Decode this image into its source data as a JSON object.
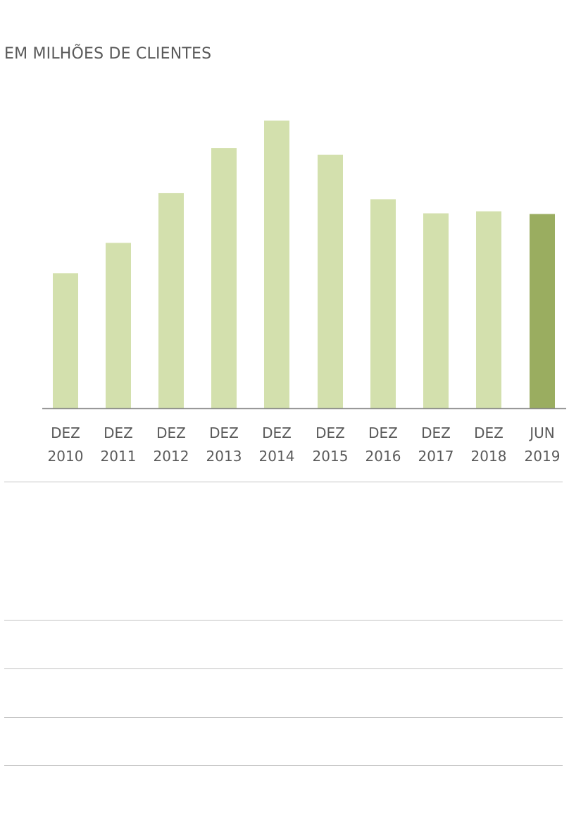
{
  "chart_data": {
    "type": "bar",
    "subtitle": "EM MILHÕES DE CLIENTES",
    "categories": [
      [
        "DEZ",
        "2010"
      ],
      [
        "DEZ",
        "2011"
      ],
      [
        "DEZ",
        "2012"
      ],
      [
        "DEZ",
        "2013"
      ],
      [
        "DEZ",
        "2014"
      ],
      [
        "DEZ",
        "2015"
      ],
      [
        "DEZ",
        "2016"
      ],
      [
        "DEZ",
        "2017"
      ],
      [
        "DEZ",
        "2018"
      ],
      [
        "JUN",
        "2019"
      ]
    ],
    "values": [
      201,
      246,
      320,
      387,
      428,
      377,
      311,
      290,
      293,
      289
    ],
    "ylim": [
      0,
      450
    ],
    "highlight_index": 9,
    "colors": {
      "bar": "#d3e0ad",
      "highlight": "#9aad60",
      "axis": "#8a8a8a",
      "label": "#5a5a5a"
    },
    "grid": false,
    "legend": "none"
  }
}
